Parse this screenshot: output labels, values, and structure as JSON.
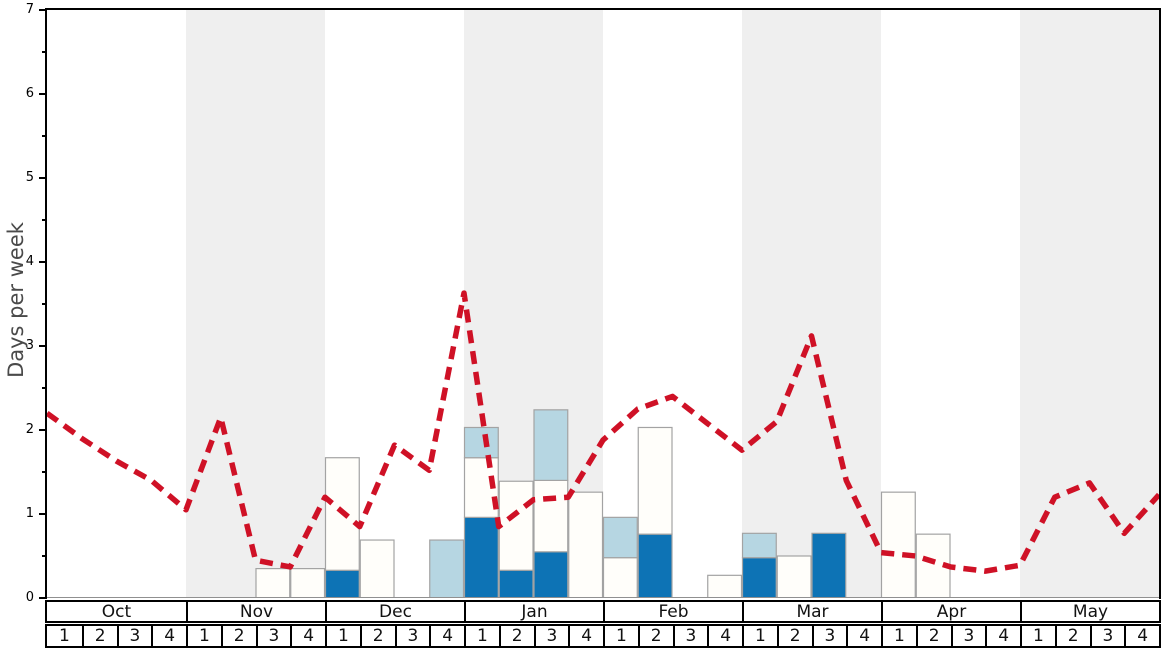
{
  "chart_data": {
    "type": "bar",
    "title": "",
    "xlabel": "",
    "ylabel": "Days per week",
    "ylim": [
      0,
      7
    ],
    "y_major_ticks": [
      0,
      1,
      2,
      3,
      4,
      5,
      6,
      7
    ],
    "y_minor_tick_step": 0.5,
    "grid": "off",
    "legend": "none",
    "x_months": [
      "Oct",
      "Nov",
      "Dec",
      "Jan",
      "Feb",
      "Mar",
      "Apr",
      "May"
    ],
    "x_weeks_per_month": [
      "1",
      "2",
      "3",
      "4"
    ],
    "shaded_month_indices": [
      1,
      3,
      5,
      7
    ],
    "segments_order": "bottom-to-top",
    "bars": [
      {
        "month": "Nov",
        "week": 3,
        "segments": [
          {
            "color": "white",
            "value": 0.35
          }
        ]
      },
      {
        "month": "Nov",
        "week": 4,
        "segments": [
          {
            "color": "white",
            "value": 0.35
          }
        ]
      },
      {
        "month": "Dec",
        "week": 1,
        "segments": [
          {
            "color": "dark_blue",
            "value": 0.33
          },
          {
            "color": "white",
            "value": 1.34
          }
        ]
      },
      {
        "month": "Dec",
        "week": 2,
        "segments": [
          {
            "color": "white",
            "value": 0.69
          }
        ]
      },
      {
        "month": "Dec",
        "week": 4,
        "segments": [
          {
            "color": "light_blue",
            "value": 0.69
          }
        ]
      },
      {
        "month": "Jan",
        "week": 1,
        "segments": [
          {
            "color": "dark_blue",
            "value": 0.96
          },
          {
            "color": "white",
            "value": 0.71
          },
          {
            "color": "light_blue",
            "value": 0.36
          }
        ]
      },
      {
        "month": "Jan",
        "week": 2,
        "segments": [
          {
            "color": "dark_blue",
            "value": 0.33
          },
          {
            "color": "white",
            "value": 1.06
          }
        ]
      },
      {
        "month": "Jan",
        "week": 3,
        "segments": [
          {
            "color": "dark_blue",
            "value": 0.55
          },
          {
            "color": "white",
            "value": 0.85
          },
          {
            "color": "light_blue",
            "value": 0.84
          }
        ]
      },
      {
        "month": "Jan",
        "week": 4,
        "segments": [
          {
            "color": "white",
            "value": 1.26
          }
        ]
      },
      {
        "month": "Feb",
        "week": 1,
        "segments": [
          {
            "color": "white",
            "value": 0.48
          },
          {
            "color": "light_blue",
            "value": 0.48
          }
        ]
      },
      {
        "month": "Feb",
        "week": 2,
        "segments": [
          {
            "color": "dark_blue",
            "value": 0.76
          },
          {
            "color": "white",
            "value": 1.27
          }
        ]
      },
      {
        "month": "Feb",
        "week": 4,
        "segments": [
          {
            "color": "white",
            "value": 0.27
          }
        ]
      },
      {
        "month": "Mar",
        "week": 1,
        "segments": [
          {
            "color": "dark_blue",
            "value": 0.48
          },
          {
            "color": "light_blue",
            "value": 0.29
          }
        ]
      },
      {
        "month": "Mar",
        "week": 2,
        "segments": [
          {
            "color": "white",
            "value": 0.5
          }
        ]
      },
      {
        "month": "Mar",
        "week": 3,
        "segments": [
          {
            "color": "dark_blue",
            "value": 0.77
          }
        ]
      },
      {
        "month": "Apr",
        "week": 1,
        "segments": [
          {
            "color": "white",
            "value": 1.26
          }
        ]
      },
      {
        "month": "Apr",
        "week": 2,
        "segments": [
          {
            "color": "white",
            "value": 0.76
          }
        ]
      }
    ],
    "line_series": {
      "name": "red-dashed-line",
      "style": "dashed",
      "x_unit": "global-week-boundary-index",
      "x_start": 0,
      "x_end": 32,
      "points": [
        2.2,
        1.9,
        1.63,
        1.4,
        1.05,
        2.15,
        0.45,
        0.37,
        1.2,
        0.85,
        1.82,
        1.52,
        3.63,
        0.85,
        1.17,
        1.2,
        1.88,
        2.25,
        2.4,
        2.08,
        1.76,
        2.1,
        3.12,
        1.4,
        0.54,
        0.5,
        0.37,
        0.32,
        0.39,
        1.2,
        1.37,
        0.77,
        1.23
      ]
    }
  },
  "colors": {
    "dark_blue": "#0d73b5",
    "light_blue": "#b6d6e2",
    "white": "#fffefa",
    "bar_border": "#a3a3a3",
    "line_red": "#cf1126",
    "band_gray": "#efefef",
    "axis_black": "#000000",
    "zero_line": "#909090",
    "ylabel_gray": "#4a4a4a"
  }
}
